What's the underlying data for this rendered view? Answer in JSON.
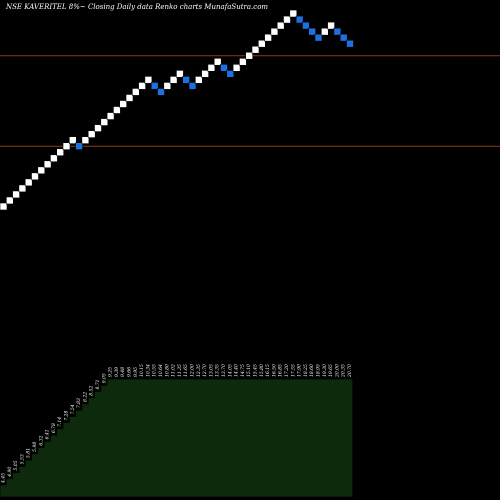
{
  "title": "NSE KAVERITEL 8%~  Closing Daily data  Renko  charts MunafaSutra.com",
  "colors": {
    "background": "#000000",
    "up_brick": "#ffffff",
    "down_brick": "#1e6fe0",
    "brick_border": "#000000",
    "level_line": "#8a3a14",
    "volume_fill": "#0d2a0d",
    "volume_edge": "#000000",
    "label_color": "#ffffff"
  },
  "chart_data": {
    "type": "renko",
    "bricks": [
      {
        "d": "u",
        "y": 0
      },
      {
        "d": "u",
        "y": 1
      },
      {
        "d": "u",
        "y": 2
      },
      {
        "d": "u",
        "y": 3
      },
      {
        "d": "u",
        "y": 4
      },
      {
        "d": "u",
        "y": 5
      },
      {
        "d": "u",
        "y": 6
      },
      {
        "d": "u",
        "y": 7
      },
      {
        "d": "u",
        "y": 8
      },
      {
        "d": "u",
        "y": 9
      },
      {
        "d": "u",
        "y": 10
      },
      {
        "d": "u",
        "y": 11
      },
      {
        "d": "d",
        "y": 10
      },
      {
        "d": "u",
        "y": 11
      },
      {
        "d": "u",
        "y": 12
      },
      {
        "d": "u",
        "y": 13
      },
      {
        "d": "u",
        "y": 14
      },
      {
        "d": "u",
        "y": 15
      },
      {
        "d": "u",
        "y": 16
      },
      {
        "d": "u",
        "y": 17
      },
      {
        "d": "u",
        "y": 18
      },
      {
        "d": "u",
        "y": 19
      },
      {
        "d": "u",
        "y": 20
      },
      {
        "d": "u",
        "y": 21
      },
      {
        "d": "d",
        "y": 20
      },
      {
        "d": "d",
        "y": 19
      },
      {
        "d": "u",
        "y": 20
      },
      {
        "d": "u",
        "y": 21
      },
      {
        "d": "u",
        "y": 22
      },
      {
        "d": "d",
        "y": 21
      },
      {
        "d": "d",
        "y": 20
      },
      {
        "d": "u",
        "y": 21
      },
      {
        "d": "u",
        "y": 22
      },
      {
        "d": "u",
        "y": 23
      },
      {
        "d": "u",
        "y": 24
      },
      {
        "d": "d",
        "y": 23
      },
      {
        "d": "d",
        "y": 22
      },
      {
        "d": "u",
        "y": 23
      },
      {
        "d": "u",
        "y": 24
      },
      {
        "d": "u",
        "y": 25
      },
      {
        "d": "u",
        "y": 26
      },
      {
        "d": "u",
        "y": 27
      },
      {
        "d": "u",
        "y": 28
      },
      {
        "d": "u",
        "y": 29
      },
      {
        "d": "u",
        "y": 30
      },
      {
        "d": "u",
        "y": 31
      },
      {
        "d": "u",
        "y": 32
      },
      {
        "d": "d",
        "y": 31
      },
      {
        "d": "d",
        "y": 30
      },
      {
        "d": "d",
        "y": 29
      },
      {
        "d": "d",
        "y": 28
      },
      {
        "d": "u",
        "y": 29
      },
      {
        "d": "u",
        "y": 30
      },
      {
        "d": "d",
        "y": 29
      },
      {
        "d": "d",
        "y": 28
      },
      {
        "d": "d",
        "y": 27
      }
    ],
    "level_lines": [
      25,
      10
    ],
    "volume_labels": [
      "4.45",
      "4.90",
      "5.05",
      "5.53",
      "5.81",
      "5.98",
      "6.32",
      "6.41",
      "6.78",
      "7.14",
      "7.28",
      "7.54",
      "7.83",
      "8.22",
      "8.52",
      "8.71",
      "9.05",
      "9.25",
      "9.39",
      "9.48",
      "9.66",
      "9.95",
      "10.15",
      "10.34",
      "10.55",
      "10.64",
      "10.80",
      "11.02",
      "11.35",
      "11.65",
      "12.00",
      "12.35",
      "12.70",
      "13.05",
      "13.35",
      "13.70",
      "14.05",
      "14.40",
      "14.75",
      "15.10",
      "15.45",
      "15.80",
      "16.15",
      "16.50",
      "16.85",
      "17.20",
      "17.55",
      "17.90",
      "18.25",
      "18.60",
      "18.95",
      "19.30",
      "19.65",
      "20.00",
      "20.35",
      "20.70"
    ]
  }
}
